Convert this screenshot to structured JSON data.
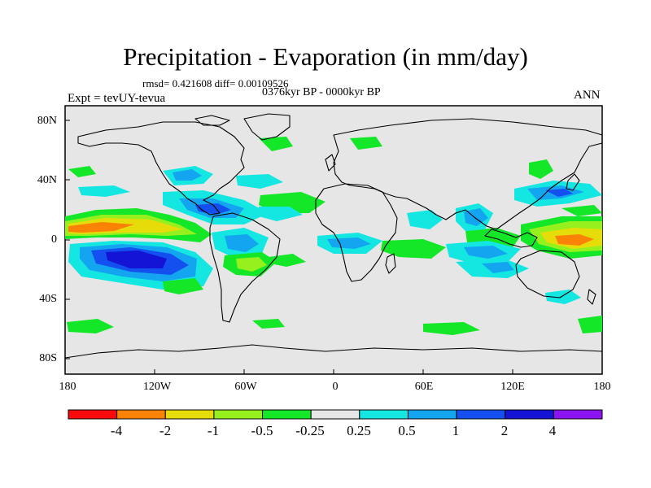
{
  "header": {
    "title": "Precipitation - Evaporation (in mm/day)",
    "stats": "rmsd= 0.421608 diff= 0.00109526",
    "period": "0376kyr BP - 0000kyr BP",
    "experiment": "Expt = tevUY-tevua",
    "season": "ANN"
  },
  "axes": {
    "lat_labels": [
      "80N",
      "40N",
      "0",
      "40S",
      "80S"
    ],
    "lon_labels": [
      "180",
      "120W",
      "60W",
      "0",
      "60E",
      "120E",
      "180"
    ]
  },
  "colorbar": {
    "labels": [
      "-4",
      "-2",
      "-1",
      "-0.5",
      "-0.25",
      "0.25",
      "0.5",
      "1",
      "2",
      "4"
    ],
    "colors": [
      "#fa0a0a",
      "#fa8205",
      "#e6dc0a",
      "#96f01e",
      "#14e628",
      "#e6e6e6",
      "#14e6e1",
      "#14a5f0",
      "#1450f0",
      "#1414d7",
      "#8c14f0"
    ]
  },
  "colors": {
    "ocean": "#e6e6e6",
    "coast": "#000000"
  }
}
